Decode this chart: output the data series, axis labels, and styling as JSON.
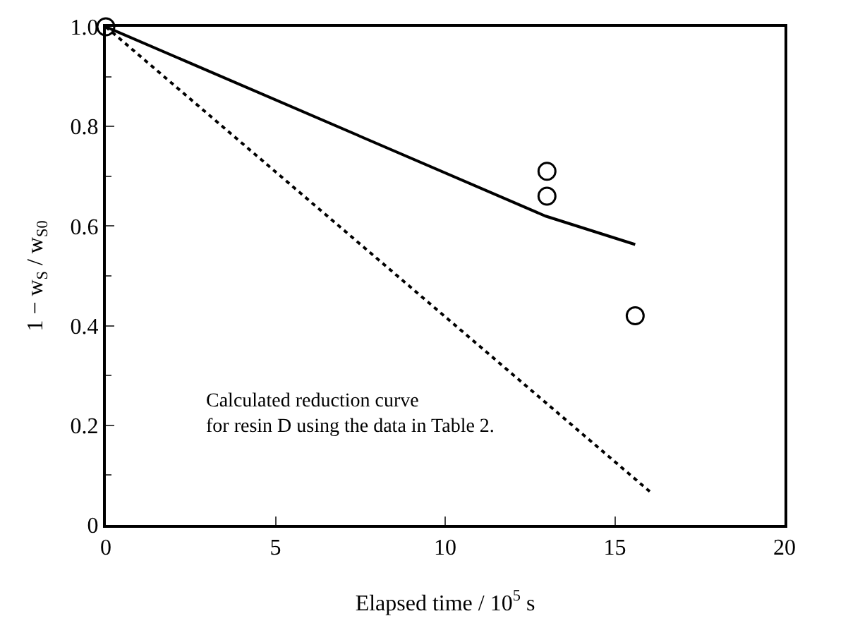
{
  "chart_data": {
    "type": "line",
    "xlabel": "Elapsed time / 10$^{5}$ s",
    "ylabel": "1 − w$_{S}$ / w$_{S0}$",
    "xlim": [
      0,
      20
    ],
    "xticks": [
      0,
      5,
      10,
      15,
      20
    ],
    "ylim": [
      0,
      1.0
    ],
    "yticks": [
      0,
      0.2,
      0.4,
      0.6,
      0.8,
      {
        "value": 1.0,
        "label": "1.0"
      }
    ],
    "legend": false,
    "annotations": [
      "Calculated reduction curve\nfor resin D using the data in Table 2."
    ],
    "series": [
      {
        "color": "#000000",
        "line_style": "solid",
        "marker": "none",
        "x": [
          0,
          12.96,
          15.6
        ],
        "values": [
          1.0,
          0.62,
          0.563
        ]
      },
      {
        "color": "#000000",
        "line_style": "dotted",
        "marker": "none",
        "x": [
          0,
          16.1
        ],
        "values": [
          1.0,
          0.063
        ]
      },
      {
        "type": "scatter",
        "color": "#000000",
        "marker": "circle",
        "x": [
          0,
          13,
          13,
          15.6
        ],
        "values": [
          1.0,
          0.71,
          0.66,
          0.42
        ]
      }
    ]
  }
}
